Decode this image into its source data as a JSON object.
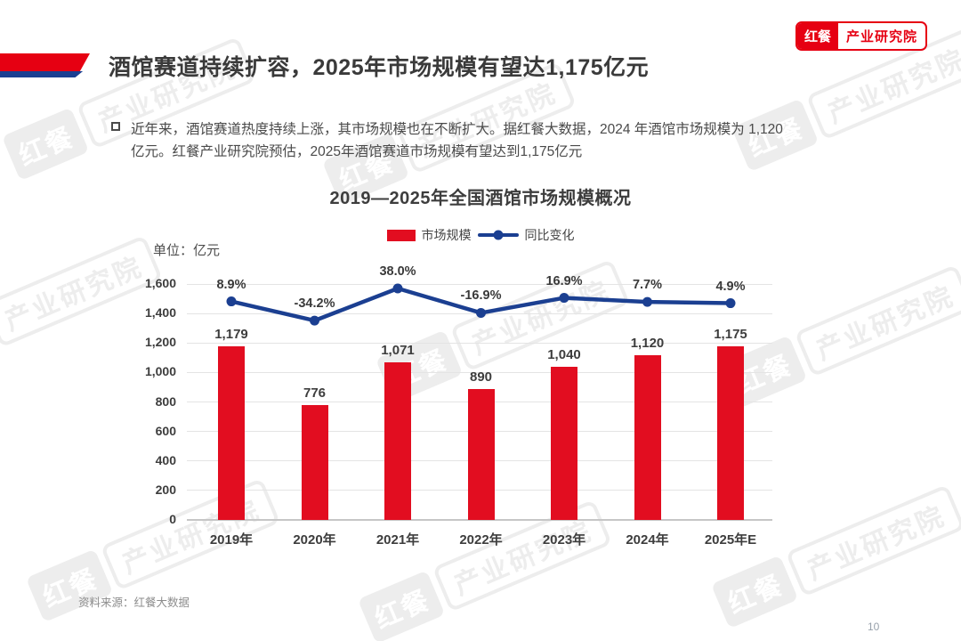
{
  "header": {
    "title": "酒馆赛道持续扩容，2025年市场规模有望达1,175亿元"
  },
  "logo": {
    "left": "红餐",
    "right": "产业研究院"
  },
  "watermark": {
    "left": "红餐",
    "right": "产业研究院"
  },
  "intro": {
    "lines": [
      "近年来，酒馆赛道热度持续上涨，其市场规模也在不断扩大。据红餐大数据，2024 年酒馆市场规模为 1,120",
      "亿元。红餐产业研究院预估，2025年酒馆赛道市场规模有望达到1,175亿元"
    ]
  },
  "chart_data": {
    "type": "bar",
    "title": "2019—2025年全国酒馆市场规模概况",
    "unit_label": "单位：亿元",
    "categories": [
      "2019年",
      "2020年",
      "2021年",
      "2022年",
      "2023年",
      "2024年",
      "2025年E"
    ],
    "series": [
      {
        "name": "市场规模",
        "type": "bar",
        "color": "#e20d20",
        "values": [
          1179,
          776,
          1071,
          890,
          1040,
          1120,
          1175
        ],
        "labels": [
          "1,179",
          "776",
          "1,071",
          "890",
          "1,040",
          "1,120",
          "1,175"
        ]
      },
      {
        "name": "同比变化",
        "type": "line",
        "color": "#1b3f91",
        "values": [
          8.9,
          -34.2,
          38.0,
          -16.9,
          16.9,
          7.7,
          4.9
        ],
        "labels": [
          "8.9%",
          "-34.2%",
          "38.0%",
          "-16.9%",
          "16.9%",
          "7.7%",
          "4.9%"
        ]
      }
    ],
    "ylabel": "亿元",
    "ylim": [
      0,
      1600
    ],
    "yticks": [
      "0",
      "200",
      "400",
      "600",
      "800",
      "1,000",
      "1,200",
      "1,400",
      "1,600"
    ],
    "grid": true,
    "legend_position": "top-center"
  },
  "footer": {
    "source": "资料来源：红餐大数据",
    "page": "10"
  }
}
